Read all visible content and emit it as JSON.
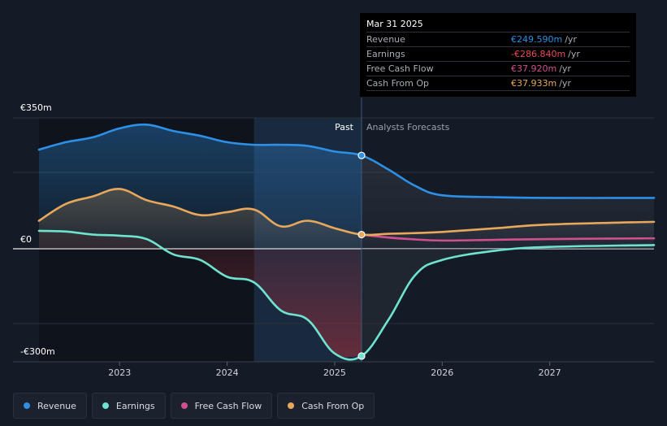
{
  "chart_data": {
    "type": "line",
    "y_axis": {
      "top_label": "€350m",
      "zero_label": "€0",
      "bottom_label": "-€300m",
      "range": [
        -300,
        350
      ]
    },
    "x_ticks": [
      2023,
      2024,
      2025,
      2026,
      2027
    ],
    "x_range": [
      2022.25,
      2027.97
    ],
    "past_label": "Past",
    "forecast_label": "Analysts Forecasts",
    "split_x": 2025.25,
    "shade_start_x": 2024.25,
    "series": [
      {
        "name": "Revenue",
        "color": "#2d8fe6",
        "points": [
          [
            2022.25,
            265
          ],
          [
            2022.5,
            285
          ],
          [
            2022.75,
            298
          ],
          [
            2023.0,
            322
          ],
          [
            2023.25,
            332
          ],
          [
            2023.5,
            315
          ],
          [
            2023.75,
            302
          ],
          [
            2024.0,
            285
          ],
          [
            2024.25,
            278
          ],
          [
            2024.5,
            278
          ],
          [
            2024.75,
            275
          ],
          [
            2025.0,
            260
          ],
          [
            2025.25,
            249.59
          ],
          [
            2025.5,
            212
          ],
          [
            2025.75,
            168
          ],
          [
            2026.0,
            143
          ],
          [
            2026.5,
            138
          ],
          [
            2027.0,
            136
          ],
          [
            2027.97,
            136
          ]
        ]
      },
      {
        "name": "Earnings",
        "color": "#6ee3d0",
        "points": [
          [
            2022.25,
            48
          ],
          [
            2022.5,
            46
          ],
          [
            2022.75,
            38
          ],
          [
            2023.0,
            35
          ],
          [
            2023.25,
            26
          ],
          [
            2023.5,
            -15
          ],
          [
            2023.75,
            -30
          ],
          [
            2024.0,
            -75
          ],
          [
            2024.25,
            -90
          ],
          [
            2024.5,
            -165
          ],
          [
            2024.75,
            -190
          ],
          [
            2025.0,
            -280
          ],
          [
            2025.25,
            -286.84
          ],
          [
            2025.5,
            -190
          ],
          [
            2025.75,
            -70
          ],
          [
            2026.0,
            -30
          ],
          [
            2026.5,
            -5
          ],
          [
            2027.0,
            5
          ],
          [
            2027.97,
            10
          ]
        ]
      },
      {
        "name": "Free Cash Flow",
        "color": "#d0508f",
        "points": [
          [
            2025.25,
            37.92
          ],
          [
            2025.5,
            30
          ],
          [
            2025.75,
            25
          ],
          [
            2026.0,
            22
          ],
          [
            2026.5,
            24
          ],
          [
            2027.0,
            26
          ],
          [
            2027.97,
            28
          ]
        ]
      },
      {
        "name": "Cash From Op",
        "color": "#e8a85c",
        "points": [
          [
            2022.25,
            75
          ],
          [
            2022.5,
            120
          ],
          [
            2022.75,
            140
          ],
          [
            2023.0,
            160
          ],
          [
            2023.25,
            130
          ],
          [
            2023.5,
            113
          ],
          [
            2023.75,
            90
          ],
          [
            2024.0,
            98
          ],
          [
            2024.25,
            105
          ],
          [
            2024.5,
            60
          ],
          [
            2024.75,
            75
          ],
          [
            2025.0,
            55
          ],
          [
            2025.25,
            37.933
          ],
          [
            2025.5,
            40
          ],
          [
            2025.75,
            42
          ],
          [
            2026.0,
            45
          ],
          [
            2026.5,
            55
          ],
          [
            2027.0,
            65
          ],
          [
            2027.97,
            72
          ]
        ]
      }
    ]
  },
  "tooltip": {
    "date": "Mar 31 2025",
    "rows": [
      {
        "label": "Revenue",
        "value": "€249.590m",
        "unit": "/yr",
        "color": "#2d8fe6"
      },
      {
        "label": "Earnings",
        "value": "-€286.840m",
        "unit": "/yr",
        "color": "#e94b5a"
      },
      {
        "label": "Free Cash Flow",
        "value": "€37.920m",
        "unit": "/yr",
        "color": "#d0508f"
      },
      {
        "label": "Cash From Op",
        "value": "€37.933m",
        "unit": "/yr",
        "color": "#e8a85c"
      }
    ]
  },
  "legend": [
    {
      "label": "Revenue",
      "color": "#2d8fe6"
    },
    {
      "label": "Earnings",
      "color": "#6ee3d0"
    },
    {
      "label": "Free Cash Flow",
      "color": "#d0508f"
    },
    {
      "label": "Cash From Op",
      "color": "#e8a85c"
    }
  ]
}
